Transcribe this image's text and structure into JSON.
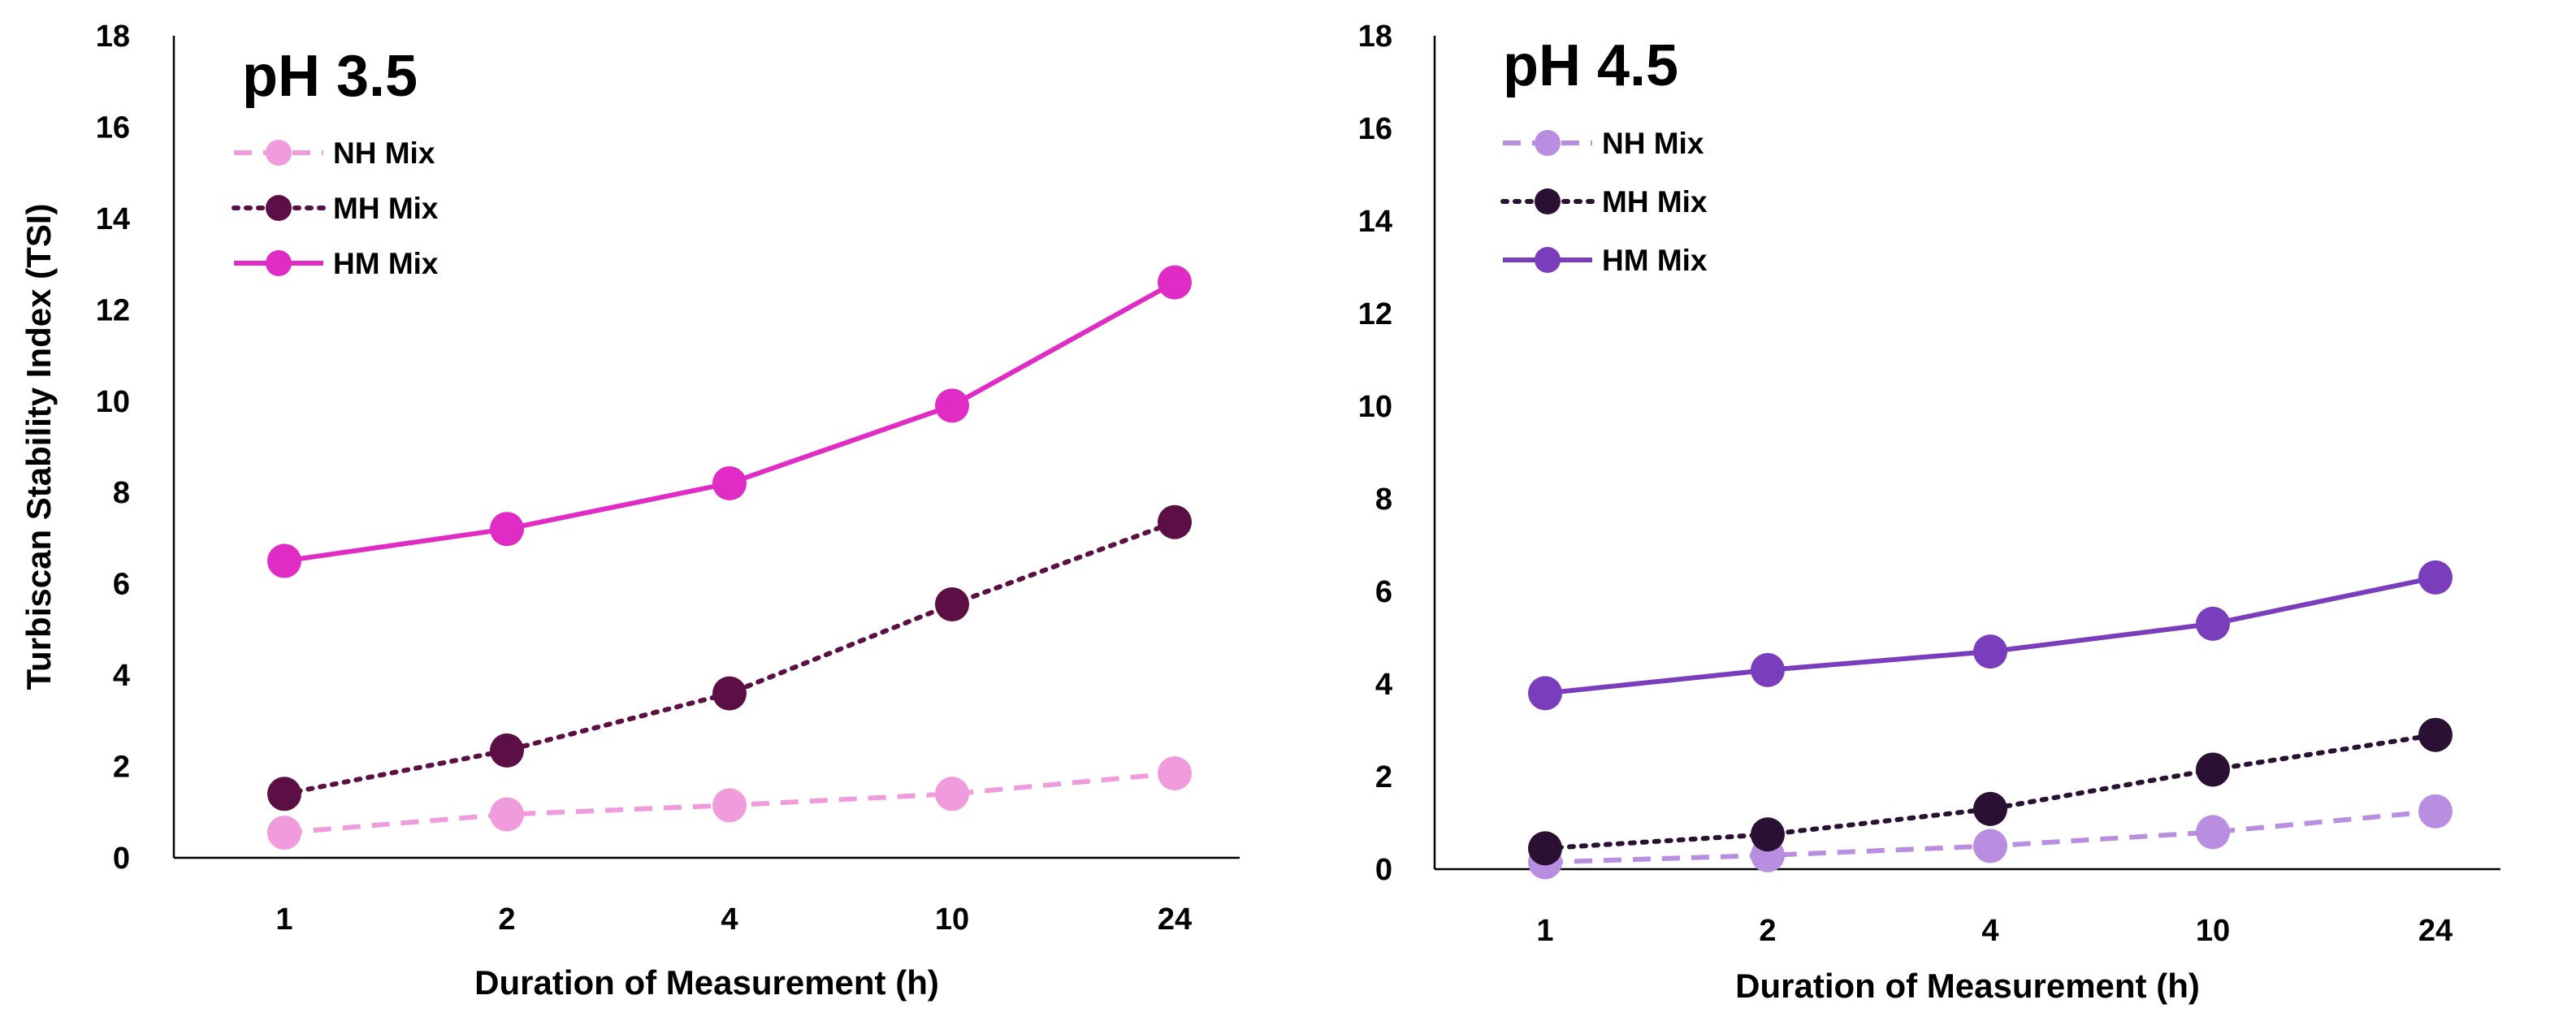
{
  "chart_data": [
    {
      "type": "line",
      "title": "pH 3.5",
      "xlabel": "Duration of Measurement (h)",
      "ylabel": "Turbiscan Stability Index (TSI)",
      "categories": [
        "1",
        "2",
        "4",
        "10",
        "24"
      ],
      "ylim": [
        0,
        18
      ],
      "yticks": [
        "0",
        "2",
        "4",
        "6",
        "8",
        "10",
        "12",
        "14",
        "16",
        "18"
      ],
      "grid": false,
      "legend_position": "top-left",
      "series": [
        {
          "name": "NH Mix",
          "values": [
            0.55,
            0.95,
            1.15,
            1.4,
            1.85
          ],
          "color": "#f09cdc",
          "dash": "dashed"
        },
        {
          "name": "MH Mix",
          "values": [
            1.4,
            2.35,
            3.6,
            5.55,
            7.35
          ],
          "color": "#5c0f44",
          "dash": "dotted"
        },
        {
          "name": "HM Mix",
          "values": [
            6.5,
            7.2,
            8.2,
            9.9,
            12.6
          ],
          "color": "#e02bc4",
          "dash": "solid"
        }
      ]
    },
    {
      "type": "line",
      "title": "pH 4.5",
      "xlabel": "Duration of Measurement (h)",
      "ylabel": "",
      "categories": [
        "1",
        "2",
        "4",
        "10",
        "24"
      ],
      "ylim": [
        0,
        18
      ],
      "yticks": [
        "0",
        "2",
        "4",
        "6",
        "8",
        "10",
        "12",
        "14",
        "16",
        "18"
      ],
      "grid": false,
      "legend_position": "top-left",
      "series": [
        {
          "name": "NH Mix",
          "values": [
            0.15,
            0.3,
            0.5,
            0.8,
            1.25
          ],
          "color": "#b98ee0",
          "dash": "dashed"
        },
        {
          "name": "MH Mix",
          "values": [
            0.45,
            0.75,
            1.3,
            2.15,
            2.9
          ],
          "color": "#2a1133",
          "dash": "dotted"
        },
        {
          "name": "HM Mix",
          "values": [
            3.8,
            4.3,
            4.7,
            5.3,
            6.3
          ],
          "color": "#7a3dbb",
          "dash": "solid"
        }
      ]
    }
  ]
}
